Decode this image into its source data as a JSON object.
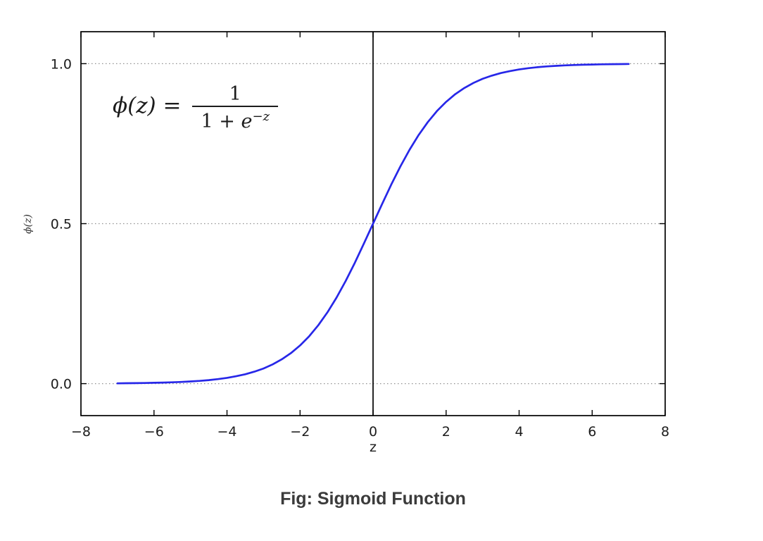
{
  "page": {
    "background": "#ffffff"
  },
  "caption": "Fig: Sigmoid Function",
  "formula": {
    "lhs": "ϕ(z) =",
    "numerator": "1",
    "den_prefix": "1 + ",
    "den_e": "e",
    "den_exp": "−z"
  },
  "chart_data": {
    "type": "line",
    "title": "",
    "xlabel": "z",
    "ylabel": "ϕ(z)",
    "xlim": [
      -8,
      8
    ],
    "ylim": [
      -0.1,
      1.1
    ],
    "xtick_values": [
      -8,
      -6,
      -4,
      -2,
      0,
      2,
      4,
      6,
      8
    ],
    "xtick_labels": [
      "−8",
      "−6",
      "−4",
      "−2",
      "0",
      "2",
      "4",
      "6",
      "8"
    ],
    "ytick_values": [
      0.0,
      0.5,
      1.0
    ],
    "ytick_labels": [
      "0.0",
      "0.5",
      "1.0"
    ],
    "grid": {
      "axis": "y",
      "style": "dotted",
      "color": "#909090"
    },
    "axvline": {
      "x": 0,
      "color": "#000000"
    },
    "annotation": "ϕ(z) = 1 / (1 + e^(−z))",
    "frame_color": "#000000",
    "series": [
      {
        "name": "sigmoid",
        "color": "#2727e8",
        "x": [
          -7,
          -6.75,
          -6.5,
          -6.25,
          -6,
          -5.75,
          -5.5,
          -5.25,
          -5,
          -4.75,
          -4.5,
          -4.25,
          -4,
          -3.75,
          -3.5,
          -3.25,
          -3,
          -2.75,
          -2.5,
          -2.25,
          -2,
          -1.75,
          -1.5,
          -1.25,
          -1,
          -0.75,
          -0.5,
          -0.25,
          0,
          0.25,
          0.5,
          0.75,
          1,
          1.25,
          1.5,
          1.75,
          2,
          2.25,
          2.5,
          2.75,
          3,
          3.25,
          3.5,
          3.75,
          4,
          4.25,
          4.5,
          4.75,
          5,
          5.25,
          5.5,
          5.75,
          6,
          6.25,
          6.5,
          6.75,
          7
        ],
        "y": [
          0.0009,
          0.0012,
          0.0015,
          0.0019,
          0.0025,
          0.0032,
          0.0041,
          0.0052,
          0.0067,
          0.0086,
          0.011,
          0.0141,
          0.018,
          0.023,
          0.0293,
          0.0373,
          0.0474,
          0.0601,
          0.0759,
          0.0953,
          0.1192,
          0.148,
          0.1824,
          0.2227,
          0.2689,
          0.3208,
          0.3775,
          0.4378,
          0.5,
          0.5622,
          0.6225,
          0.6792,
          0.7311,
          0.7773,
          0.8176,
          0.852,
          0.8808,
          0.9047,
          0.9241,
          0.9399,
          0.9526,
          0.9627,
          0.9707,
          0.977,
          0.982,
          0.9859,
          0.989,
          0.9914,
          0.9933,
          0.9948,
          0.9959,
          0.9968,
          0.9975,
          0.9981,
          0.9985,
          0.9988,
          0.9991
        ]
      }
    ]
  }
}
